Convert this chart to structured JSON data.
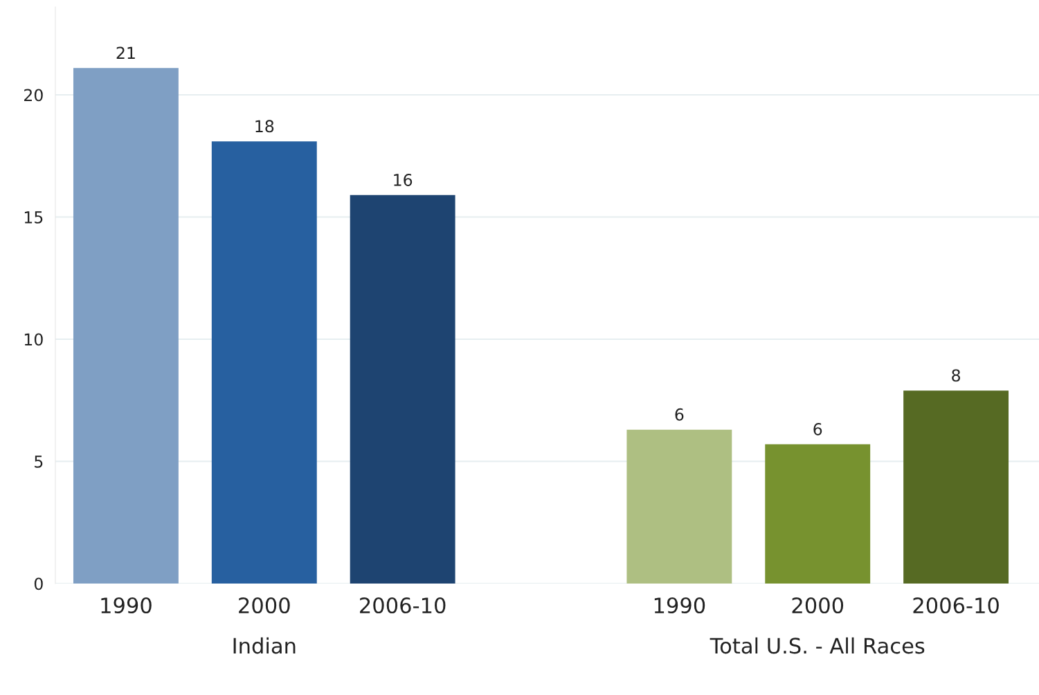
{
  "chart_data": {
    "type": "bar",
    "categories": [
      "1990",
      "2000",
      "2006-10",
      null,
      "1990",
      "2000",
      "2006-10"
    ],
    "series": [
      {
        "name": "Indian",
        "values": [
          21.1,
          18.1,
          15.9,
          null,
          null,
          null,
          null
        ],
        "colors": [
          "#7f9fc4",
          "#2760a0",
          "#1e4471",
          null,
          null,
          null,
          null
        ],
        "value_labels": [
          "21",
          "18",
          "16",
          null,
          null,
          null,
          null
        ]
      },
      {
        "name": "Total U.S. - All Races",
        "values": [
          null,
          null,
          null,
          null,
          6.3,
          5.7,
          7.9
        ],
        "colors": [
          null,
          null,
          null,
          null,
          "#aebf82",
          "#77922f",
          "#566a23"
        ],
        "value_labels": [
          null,
          null,
          null,
          null,
          "6",
          "6",
          "8"
        ]
      }
    ],
    "ylim": [
      0,
      23.6
    ],
    "yticks": [
      0,
      5,
      10,
      15,
      20
    ],
    "grid": "y",
    "legend": false
  }
}
